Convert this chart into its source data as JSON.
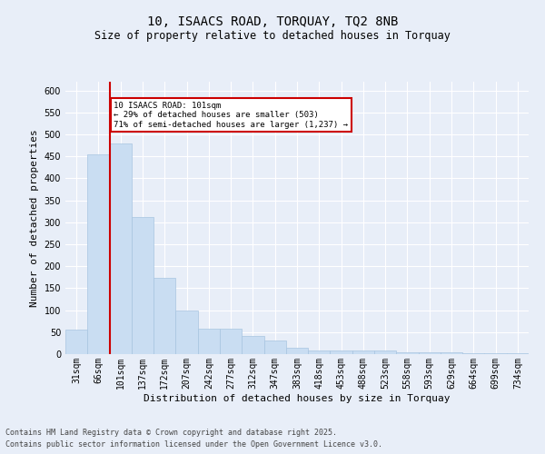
{
  "title_line1": "10, ISAACS ROAD, TORQUAY, TQ2 8NB",
  "title_line2": "Size of property relative to detached houses in Torquay",
  "xlabel": "Distribution of detached houses by size in Torquay",
  "ylabel": "Number of detached properties",
  "categories": [
    "31sqm",
    "66sqm",
    "101sqm",
    "137sqm",
    "172sqm",
    "207sqm",
    "242sqm",
    "277sqm",
    "312sqm",
    "347sqm",
    "383sqm",
    "418sqm",
    "453sqm",
    "488sqm",
    "523sqm",
    "558sqm",
    "593sqm",
    "629sqm",
    "664sqm",
    "699sqm",
    "734sqm"
  ],
  "values": [
    55,
    455,
    480,
    312,
    173,
    100,
    58,
    58,
    42,
    30,
    14,
    8,
    8,
    8,
    8,
    5,
    5,
    5,
    2,
    2,
    3
  ],
  "bar_color": "#c9ddf2",
  "bar_edgecolor": "#a8c4e0",
  "highlight_index": 2,
  "highlight_line_color": "#cc0000",
  "ylim": [
    0,
    620
  ],
  "yticks": [
    0,
    50,
    100,
    150,
    200,
    250,
    300,
    350,
    400,
    450,
    500,
    550,
    600
  ],
  "annotation_text": "10 ISAACS ROAD: 101sqm\n← 29% of detached houses are smaller (503)\n71% of semi-detached houses are larger (1,237) →",
  "annotation_box_color": "#ffffff",
  "annotation_box_edgecolor": "#cc0000",
  "footer_line1": "Contains HM Land Registry data © Crown copyright and database right 2025.",
  "footer_line2": "Contains public sector information licensed under the Open Government Licence v3.0.",
  "bg_color": "#e8eef8",
  "plot_bg_color": "#e8eef8",
  "title_fontsize": 10,
  "subtitle_fontsize": 8.5,
  "axis_label_fontsize": 8,
  "tick_fontsize": 7,
  "footer_fontsize": 6
}
